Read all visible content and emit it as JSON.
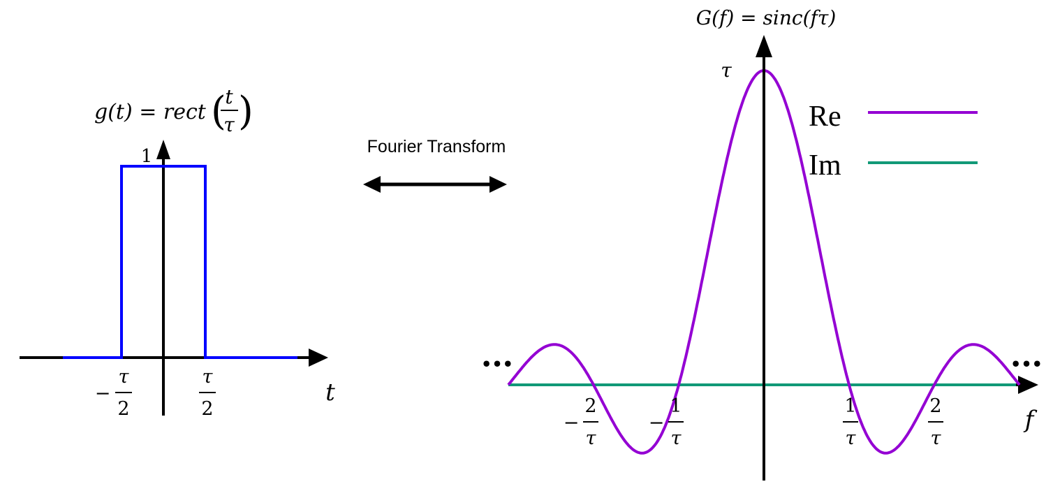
{
  "left_plot": {
    "title": "g(t) = rect(t/τ)",
    "title_lhs": "g(t) = rect",
    "title_num": "t",
    "title_den": "τ",
    "height_label": "1",
    "x_label": "t",
    "ticks": [
      {
        "value": -0.5,
        "sign": "−",
        "num": "τ",
        "den": "2"
      },
      {
        "value": 0.5,
        "sign": "",
        "num": "τ",
        "den": "2"
      }
    ],
    "line_color": "#0000ff"
  },
  "transform": {
    "label": "Fourier Transform"
  },
  "right_plot": {
    "title": "G(f) = sinc(fτ)",
    "peak_label": "τ",
    "x_label": "f",
    "ellipsis_left": "•••",
    "ellipsis_right": "•••",
    "ticks": [
      {
        "value": -2,
        "sign": "−",
        "num": "2",
        "den": "τ"
      },
      {
        "value": -1,
        "sign": "−",
        "num": "1",
        "den": "τ"
      },
      {
        "value": 1,
        "sign": "",
        "num": "1",
        "den": "τ"
      },
      {
        "value": 2,
        "sign": "",
        "num": "2",
        "den": "τ"
      }
    ],
    "legend": [
      {
        "label": "Re",
        "color": "#9400d3"
      },
      {
        "label": "Im",
        "color": "#119977"
      }
    ]
  },
  "chart_data": [
    {
      "type": "line",
      "x_range": [
        -1.2,
        1.6
      ],
      "series": [
        {
          "x": [
            -1.2,
            -0.5,
            -0.5,
            0.5,
            0.5,
            1.6
          ],
          "y": [
            0,
            0,
            1,
            1,
            0,
            0
          ]
        }
      ]
    },
    {
      "type": "line",
      "x_range": [
        -3,
        3
      ],
      "series": [
        {
          "name": "Re",
          "function": "sinc(fτ)",
          "x_range": [
            -3,
            3
          ]
        },
        {
          "name": "Im",
          "function": "0",
          "x_range": [
            -3,
            3
          ]
        }
      ]
    }
  ]
}
